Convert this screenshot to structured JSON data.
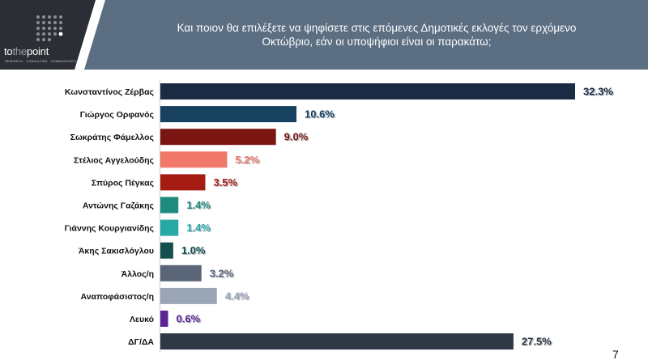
{
  "header": {
    "title_line1": "Και ποιον θα επιλέξετε να ψηφίσετε στις επόμενες Δημοτικές εκλογές τον ερχόμενο",
    "title_line2": "Οκτώβριο, εάν οι υποψήφιοι είναι οι παρακάτω;"
  },
  "logo": {
    "wordmark_a": "to",
    "wordmark_b": "the",
    "wordmark_c": "point",
    "tagline": "RESEARCH · CONSULTING · COMMUNICATION"
  },
  "page_number": "7",
  "chart_data": {
    "type": "bar",
    "orientation": "horizontal",
    "categories": [
      "Κωνσταντίνος Ζέρβας",
      "Γιώργος Ορφανός",
      "Σωκράτης Φάμελλος",
      "Στέλιος Αγγελούδης",
      "Σπύρος Πέγκας",
      "Αντώνης Γαζάκης",
      "Γιάννης Κουργιανίδης",
      "Άκης Σακισλόγλου",
      "Άλλος/η",
      "Αναποφάσιστος/η",
      "Λευκό",
      "ΔΓ/ΔΑ"
    ],
    "values": [
      32.3,
      10.6,
      9.0,
      5.2,
      3.5,
      1.4,
      1.4,
      1.0,
      3.2,
      4.4,
      0.6,
      27.5
    ],
    "value_labels": [
      "32.3%",
      "10.6%",
      "9.0%",
      "5.2%",
      "3.5%",
      "1.4%",
      "1.4%",
      "1.0%",
      "3.2%",
      "4.4%",
      "0.6%",
      "27.5%"
    ],
    "colors": [
      "#1c2b44",
      "#17415f",
      "#7b1512",
      "#f2796a",
      "#a61c12",
      "#1f8a7f",
      "#26a9a4",
      "#134f4c",
      "#5a6678",
      "#9aa6b6",
      "#5b2596",
      "#2f3845"
    ],
    "xlim": [
      0,
      33
    ],
    "grid": false,
    "legend": "none"
  }
}
